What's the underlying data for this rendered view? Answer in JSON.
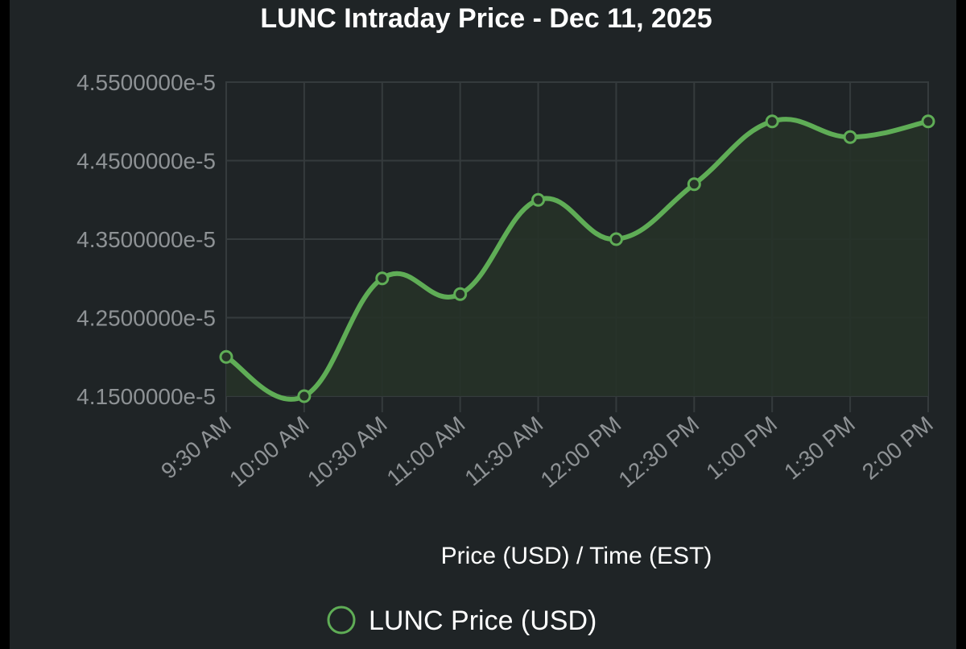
{
  "chart_data": {
    "type": "line",
    "title": "LUNC Intraday Price - Dec 11, 2025",
    "xlabel": "Price (USD) / Time (EST)",
    "ylabel": "",
    "categories": [
      "9:30 AM",
      "10:00 AM",
      "10:30 AM",
      "11:00 AM",
      "11:30 AM",
      "12:00 PM",
      "12:30 PM",
      "1:00 PM",
      "1:30 PM",
      "2:00 PM"
    ],
    "series": [
      {
        "name": "LUNC Price (USD)",
        "values": [
          4.2e-05,
          4.15e-05,
          4.3e-05,
          4.28e-05,
          4.4e-05,
          4.35e-05,
          4.42e-05,
          4.5e-05,
          4.48e-05,
          4.5e-05
        ]
      }
    ],
    "yticks": [
      "4.5500000e-5",
      "4.4500000e-5",
      "4.3500000e-5",
      "4.2500000e-5",
      "4.1500000e-5"
    ],
    "ytick_values": [
      4.55e-05,
      4.45e-05,
      4.35e-05,
      4.25e-05,
      4.15e-05
    ],
    "ylim": [
      4.15e-05,
      4.55e-05
    ],
    "grid": true,
    "area_fill": true,
    "smooth": true,
    "legend_position": "bottom-center",
    "colors": {
      "background": "#1f2426",
      "line": "#5fad56",
      "fill": "#263228",
      "grid": "#353b3d",
      "tick_text": "#8e9295",
      "title_text": "#ffffff"
    }
  }
}
